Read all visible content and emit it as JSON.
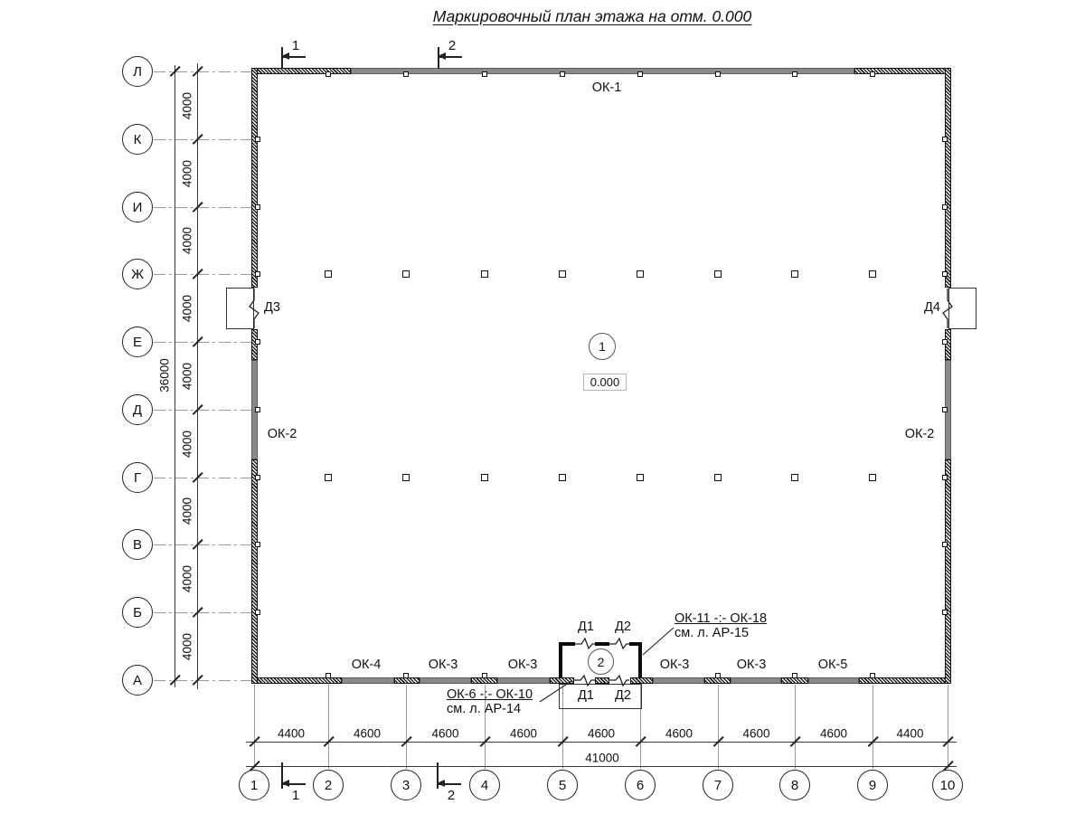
{
  "title": "Маркировочный план этажа на отм. 0.000",
  "axes": {
    "rows": [
      "Л",
      "К",
      "И",
      "Ж",
      "Е",
      "Д",
      "Г",
      "В",
      "Б",
      "А"
    ],
    "row_dims": [
      "4000",
      "4000",
      "4000",
      "4000",
      "4000",
      "4000",
      "4000",
      "4000",
      "4000"
    ],
    "row_total": "36000",
    "cols": [
      "1",
      "2",
      "3",
      "4",
      "5",
      "6",
      "7",
      "8",
      "9",
      "10"
    ],
    "col_dims": [
      "4400",
      "4600",
      "4600",
      "4600",
      "4600",
      "4600",
      "4600",
      "4600",
      "4400"
    ],
    "col_total": "41000"
  },
  "section_marks": {
    "top": [
      "1",
      "2"
    ],
    "bottom": [
      "1",
      "2"
    ]
  },
  "windows": {
    "top": "ОК-1",
    "left": "ОК-2",
    "right": "ОК-2",
    "bottom": [
      "ОК-4",
      "ОК-3",
      "ОК-3",
      "ОК-3",
      "ОК-3",
      "ОК-5"
    ]
  },
  "doors": {
    "left": "Д3",
    "right": "Д4",
    "vestibule_top": [
      "Д1",
      "Д2"
    ],
    "vestibule_bottom": [
      "Д1",
      "Д2"
    ]
  },
  "rooms": {
    "main": {
      "number": "1",
      "elevation": "0.000"
    },
    "vestibule": {
      "number": "2"
    }
  },
  "notes": [
    {
      "line1": "ОК-11 -:- ОК-18",
      "line2": "см. л. АР-15"
    },
    {
      "line1": "ОК-6 -:- ОК-10",
      "line2": "см. л. АР-14"
    }
  ]
}
